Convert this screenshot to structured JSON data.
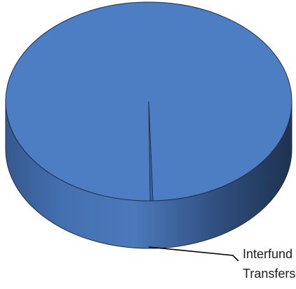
{
  "chart_data": {
    "type": "pie",
    "style": "3d",
    "title": "",
    "slices": [
      {
        "label": "",
        "value": 99.7,
        "color": "#4d7ec4"
      },
      {
        "label": "Interfund Transfers",
        "value": 0.3,
        "color": "#3b64a0"
      }
    ],
    "labels_shown": {
      "interfund_line1": "Interfund",
      "interfund_line2": "Transfers"
    },
    "legend": "none",
    "grid": false
  }
}
